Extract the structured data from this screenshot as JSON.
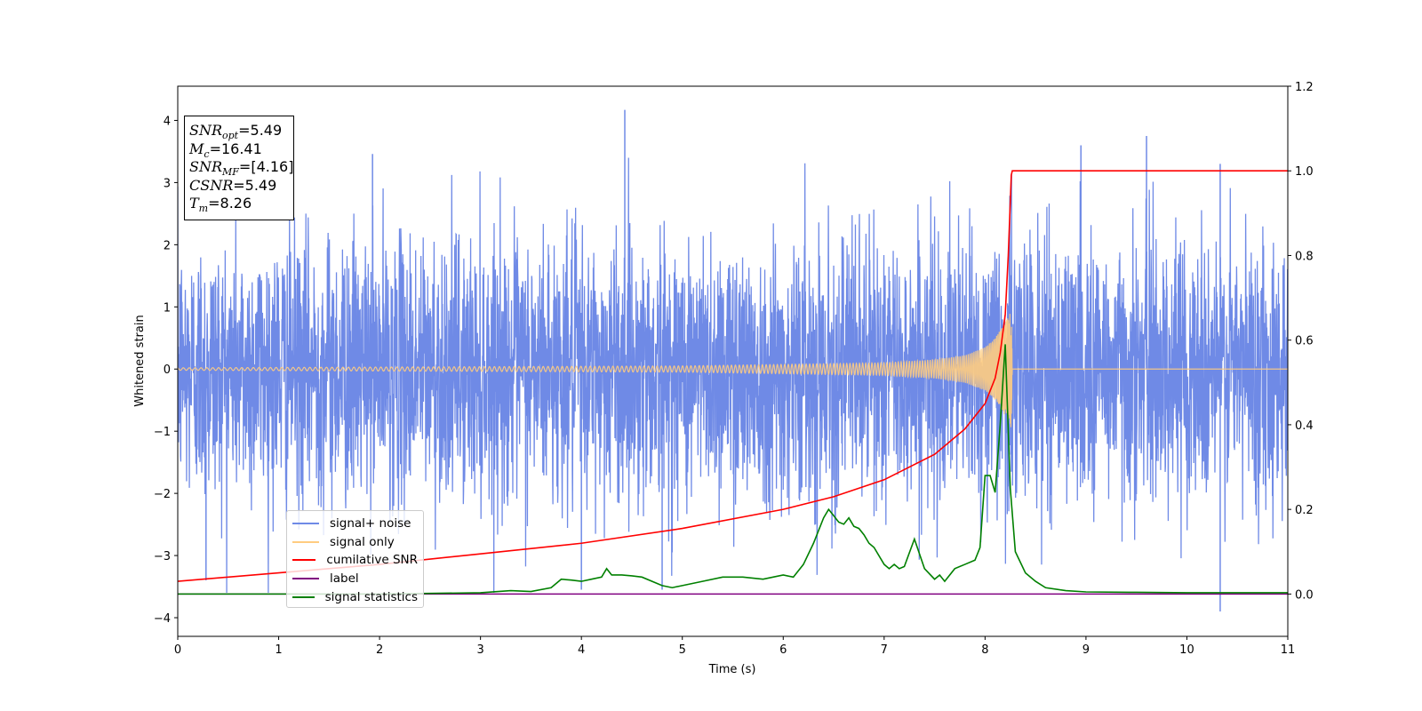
{
  "chart_data": {
    "type": "line",
    "xlabel": "Time (s)",
    "ylabel": "Whitened strain",
    "xlim": [
      0,
      11
    ],
    "ylim": [
      -4.3,
      4.55
    ],
    "y2lim": [
      -0.1,
      1.2
    ],
    "x_ticks": [
      "0",
      "1",
      "2",
      "3",
      "4",
      "5",
      "6",
      "7",
      "8",
      "9",
      "10",
      "11"
    ],
    "y_ticks": [
      "4",
      "3",
      "2",
      "1",
      "0",
      "−1",
      "−2",
      "−3",
      "−4"
    ],
    "y_tick_values": [
      4,
      3,
      2,
      1,
      0,
      -1,
      -2,
      -3,
      -4
    ],
    "y2_ticks": [
      "1.2",
      "1.0",
      "0.8",
      "0.6",
      "0.4",
      "0.2",
      "0.0"
    ],
    "y2_tick_values": [
      1.2,
      1.0,
      0.8,
      0.6,
      0.4,
      0.2,
      0.0
    ],
    "grid": false,
    "legend_position": "lower-left",
    "series": [
      {
        "name": "signal+ noise",
        "axis": "left",
        "color": "#6f8ae6",
        "description_values": "dense noise, mostly within about -2.8 to 3.5, peaks up to 4.17 near t=4.43 and down to -3.9 near t=10.33",
        "notable_points": [
          [
            0.28,
            -3.4
          ],
          [
            1.93,
            3.46
          ],
          [
            4.0,
            -3.55
          ],
          [
            4.43,
            4.17
          ],
          [
            4.8,
            -3.55
          ],
          [
            8.95,
            3.6
          ],
          [
            9.6,
            3.75
          ],
          [
            10.33,
            -3.9
          ],
          [
            10.33,
            3.3
          ]
        ]
      },
      {
        "name": "signal only",
        "axis": "left",
        "color": "#ffcc80",
        "description_values": "chirp, amplitude ~0.02 early rising to ~0.95 at merger near t=8.26, then zero",
        "envelope": {
          "x": [
            0,
            5,
            7,
            7.5,
            7.8,
            8.0,
            8.1,
            8.2,
            8.26,
            8.27,
            11
          ],
          "amplitude": [
            0.02,
            0.05,
            0.1,
            0.15,
            0.22,
            0.35,
            0.5,
            0.75,
            0.95,
            0,
            0
          ]
        }
      },
      {
        "name": "cumilative SNR",
        "axis": "right",
        "color": "#ff0000",
        "x": [
          0,
          1,
          2,
          3,
          4,
          5,
          6,
          6.5,
          7,
          7.5,
          7.8,
          8.0,
          8.1,
          8.15,
          8.2,
          8.23,
          8.26,
          8.27,
          11
        ],
        "y": [
          0.03,
          0.05,
          0.07,
          0.095,
          0.12,
          0.155,
          0.2,
          0.23,
          0.27,
          0.33,
          0.39,
          0.45,
          0.51,
          0.57,
          0.66,
          0.8,
          0.99,
          1.0,
          1.0
        ]
      },
      {
        "name": "label",
        "axis": "right",
        "color": "#800080",
        "x": [
          0,
          11
        ],
        "y": [
          0,
          0
        ]
      },
      {
        "name": "signal statistics",
        "axis": "right",
        "color": "#008000",
        "x": [
          0,
          1,
          2,
          3,
          3.3,
          3.5,
          3.7,
          3.8,
          3.9,
          4.0,
          4.1,
          4.2,
          4.25,
          4.3,
          4.4,
          4.5,
          4.6,
          4.8,
          4.9,
          5.0,
          5.2,
          5.4,
          5.6,
          5.8,
          5.9,
          6.0,
          6.1,
          6.2,
          6.3,
          6.4,
          6.45,
          6.5,
          6.55,
          6.6,
          6.65,
          6.7,
          6.75,
          6.8,
          6.85,
          6.9,
          7.0,
          7.05,
          7.1,
          7.15,
          7.2,
          7.3,
          7.4,
          7.5,
          7.55,
          7.6,
          7.7,
          7.8,
          7.9,
          7.95,
          8.0,
          8.05,
          8.1,
          8.15,
          8.2,
          8.25,
          8.3,
          8.4,
          8.5,
          8.6,
          8.8,
          9.0,
          9.5,
          10.0,
          10.5,
          11
        ],
        "y": [
          0.0,
          0.0,
          0.0,
          0.003,
          0.008,
          0.006,
          0.015,
          0.035,
          0.033,
          0.03,
          0.035,
          0.04,
          0.06,
          0.045,
          0.045,
          0.043,
          0.04,
          0.02,
          0.015,
          0.02,
          0.03,
          0.04,
          0.04,
          0.035,
          0.04,
          0.045,
          0.04,
          0.07,
          0.12,
          0.18,
          0.2,
          0.185,
          0.17,
          0.165,
          0.18,
          0.16,
          0.155,
          0.14,
          0.12,
          0.11,
          0.07,
          0.06,
          0.07,
          0.06,
          0.065,
          0.13,
          0.06,
          0.035,
          0.045,
          0.03,
          0.06,
          0.07,
          0.08,
          0.11,
          0.28,
          0.28,
          0.24,
          0.4,
          0.59,
          0.25,
          0.1,
          0.05,
          0.03,
          0.015,
          0.008,
          0.005,
          0.004,
          0.003,
          0.003,
          0.003
        ]
      }
    ]
  },
  "info_box": {
    "snr_opt_label": "SNR",
    "snr_opt_sub": "opt",
    "snr_opt_value": "=5.49",
    "mc_label": "M",
    "mc_sub": "c",
    "mc_value": "=16.41",
    "snr_mf_label": "SNR",
    "snr_mf_sub": "MF",
    "snr_mf_value": "=[4.16]",
    "csnr_label": "CSNR",
    "csnr_value": "=5.49",
    "tm_label": "T",
    "tm_sub": "m",
    "tm_value": "=8.26"
  }
}
